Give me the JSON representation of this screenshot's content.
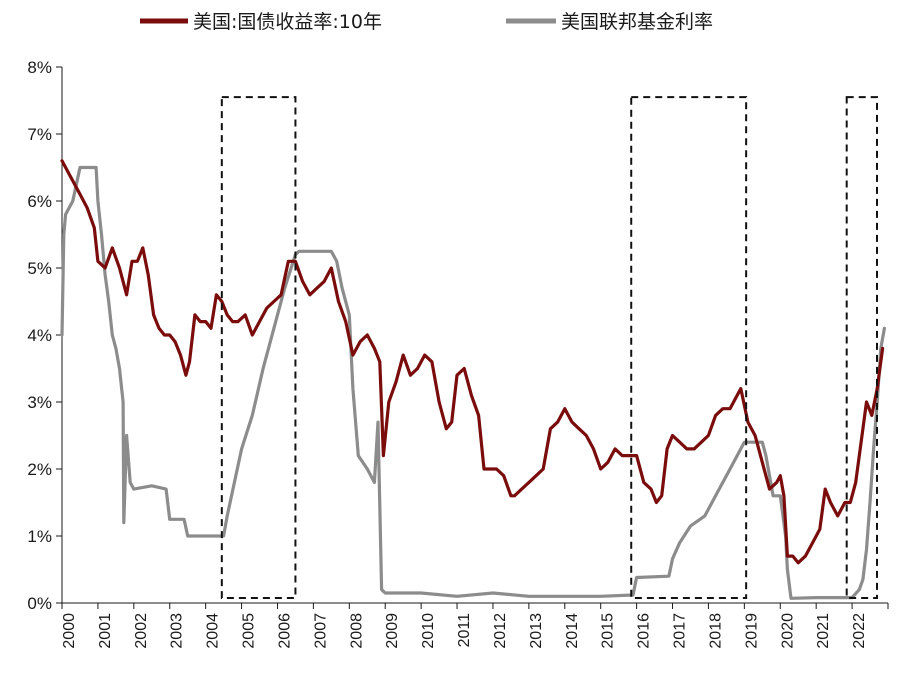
{
  "chart_data": {
    "type": "line",
    "title": "",
    "xlabel": "",
    "ylabel": "",
    "ylim": [
      0,
      8
    ],
    "xlim": [
      2000,
      2023
    ],
    "y_tick_labels": [
      "0%",
      "1%",
      "2%",
      "3%",
      "4%",
      "5%",
      "6%",
      "7%",
      "8%"
    ],
    "x_tick_labels": [
      "2000",
      "2001",
      "2002",
      "2003",
      "2004",
      "2005",
      "2006",
      "2007",
      "2008",
      "2009",
      "2010",
      "2011",
      "2012",
      "2013",
      "2014",
      "2015",
      "2016",
      "2017",
      "2018",
      "2019",
      "2020",
      "2021",
      "2022"
    ],
    "legend_position": "top",
    "grid": false,
    "series": [
      {
        "name": "美国:国债收益率:10年",
        "color": "#7a0c0c",
        "x": [
          2000.0,
          2000.1,
          2000.3,
          2000.5,
          2000.7,
          2000.9,
          2001.0,
          2001.2,
          2001.4,
          2001.6,
          2001.8,
          2001.95,
          2002.1,
          2002.25,
          2002.4,
          2002.55,
          2002.7,
          2002.85,
          2003.0,
          2003.15,
          2003.3,
          2003.45,
          2003.55,
          2003.7,
          2003.85,
          2004.0,
          2004.15,
          2004.3,
          2004.45,
          2004.6,
          2004.75,
          2004.9,
          2005.1,
          2005.3,
          2005.5,
          2005.7,
          2005.9,
          2006.1,
          2006.3,
          2006.5,
          2006.7,
          2006.9,
          2007.1,
          2007.3,
          2007.5,
          2007.7,
          2007.9,
          2008.1,
          2008.3,
          2008.5,
          2008.7,
          2008.85,
          2008.95,
          2009.1,
          2009.3,
          2009.5,
          2009.7,
          2009.9,
          2010.1,
          2010.3,
          2010.5,
          2010.7,
          2010.85,
          2011.0,
          2011.2,
          2011.4,
          2011.6,
          2011.75,
          2011.9,
          2012.1,
          2012.3,
          2012.5,
          2012.6,
          2012.8,
          2013.0,
          2013.2,
          2013.4,
          2013.6,
          2013.8,
          2014.0,
          2014.2,
          2014.4,
          2014.6,
          2014.8,
          2015.0,
          2015.2,
          2015.4,
          2015.6,
          2015.8,
          2016.0,
          2016.2,
          2016.4,
          2016.55,
          2016.7,
          2016.85,
          2017.0,
          2017.2,
          2017.4,
          2017.6,
          2017.8,
          2018.0,
          2018.2,
          2018.4,
          2018.6,
          2018.8,
          2018.9,
          2019.1,
          2019.3,
          2019.5,
          2019.7,
          2019.9,
          2020.0,
          2020.1,
          2020.2,
          2020.35,
          2020.5,
          2020.7,
          2020.9,
          2021.1,
          2021.25,
          2021.4,
          2021.6,
          2021.8,
          2021.95,
          2022.1,
          2022.25,
          2022.4,
          2022.55,
          2022.7,
          2022.85
        ],
        "values": [
          6.6,
          6.5,
          6.3,
          6.1,
          5.9,
          5.6,
          5.1,
          5.0,
          5.3,
          5.0,
          4.6,
          5.1,
          5.1,
          5.3,
          4.9,
          4.3,
          4.1,
          4.0,
          4.0,
          3.9,
          3.7,
          3.4,
          3.6,
          4.3,
          4.2,
          4.2,
          4.1,
          4.6,
          4.5,
          4.3,
          4.2,
          4.2,
          4.3,
          4.0,
          4.2,
          4.4,
          4.5,
          4.6,
          5.1,
          5.1,
          4.8,
          4.6,
          4.7,
          4.8,
          5.0,
          4.5,
          4.2,
          3.7,
          3.9,
          4.0,
          3.8,
          3.6,
          2.2,
          3.0,
          3.3,
          3.7,
          3.4,
          3.5,
          3.7,
          3.6,
          3.0,
          2.6,
          2.7,
          3.4,
          3.5,
          3.1,
          2.8,
          2.0,
          2.0,
          2.0,
          1.9,
          1.6,
          1.6,
          1.7,
          1.8,
          1.9,
          2.0,
          2.6,
          2.7,
          2.9,
          2.7,
          2.6,
          2.5,
          2.3,
          2.0,
          2.1,
          2.3,
          2.2,
          2.2,
          2.2,
          1.8,
          1.7,
          1.5,
          1.6,
          2.3,
          2.5,
          2.4,
          2.3,
          2.3,
          2.4,
          2.5,
          2.8,
          2.9,
          2.9,
          3.1,
          3.2,
          2.7,
          2.5,
          2.1,
          1.7,
          1.8,
          1.9,
          1.6,
          0.7,
          0.7,
          0.6,
          0.7,
          0.9,
          1.1,
          1.7,
          1.5,
          1.3,
          1.5,
          1.5,
          1.8,
          2.4,
          3.0,
          2.8,
          3.2,
          3.8
        ]
      },
      {
        "name": "美国联邦基金利率",
        "color": "#8c8c8c",
        "x": [
          2000.0,
          2000.05,
          2000.1,
          2000.3,
          2000.5,
          2000.7,
          2000.95,
          2001.0,
          2001.1,
          2001.2,
          2001.3,
          2001.4,
          2001.5,
          2001.6,
          2001.7,
          2001.72,
          2001.8,
          2001.9,
          2002.0,
          2002.5,
          2002.9,
          2003.0,
          2003.4,
          2003.5,
          2003.9,
          2004.0,
          2004.5,
          2004.6,
          2004.8,
          2005.0,
          2005.3,
          2005.6,
          2005.9,
          2006.2,
          2006.5,
          2006.6,
          2007.0,
          2007.5,
          2007.65,
          2007.8,
          2008.0,
          2008.1,
          2008.25,
          2008.5,
          2008.7,
          2008.8,
          2008.9,
          2009.0,
          2010.0,
          2011.0,
          2012.0,
          2013.0,
          2014.0,
          2015.0,
          2015.9,
          2016.0,
          2016.9,
          2017.0,
          2017.2,
          2017.5,
          2017.9,
          2018.2,
          2018.5,
          2018.8,
          2019.0,
          2019.5,
          2019.6,
          2019.8,
          2020.0,
          2020.15,
          2020.2,
          2020.3,
          2021.0,
          2022.0,
          2022.2,
          2022.3,
          2022.4,
          2022.5,
          2022.6,
          2022.7,
          2022.8,
          2022.9
        ],
        "values": [
          4.0,
          5.5,
          5.8,
          6.0,
          6.5,
          6.5,
          6.5,
          6.0,
          5.5,
          4.9,
          4.5,
          4.0,
          3.8,
          3.5,
          3.0,
          1.2,
          2.5,
          1.8,
          1.7,
          1.75,
          1.7,
          1.25,
          1.25,
          1.0,
          1.0,
          1.0,
          1.0,
          1.3,
          1.8,
          2.3,
          2.8,
          3.5,
          4.1,
          4.7,
          5.2,
          5.25,
          5.25,
          5.25,
          5.1,
          4.7,
          4.3,
          3.2,
          2.2,
          2.0,
          1.8,
          2.7,
          0.2,
          0.15,
          0.15,
          0.1,
          0.15,
          0.1,
          0.1,
          0.1,
          0.12,
          0.38,
          0.4,
          0.66,
          0.9,
          1.15,
          1.3,
          1.6,
          1.9,
          2.2,
          2.4,
          2.4,
          2.2,
          1.6,
          1.6,
          1.0,
          0.5,
          0.07,
          0.08,
          0.08,
          0.2,
          0.35,
          0.8,
          1.5,
          2.3,
          3.0,
          3.8,
          4.1
        ]
      }
    ],
    "highlight_boxes": [
      {
        "x_start": 2004.45,
        "x_end": 2006.5,
        "y_top": 7.55
      },
      {
        "x_start": 2015.85,
        "x_end": 2019.05,
        "y_top": 7.55
      },
      {
        "x_start": 2021.85,
        "x_end": 2023.15,
        "y_top": 7.55
      }
    ]
  }
}
